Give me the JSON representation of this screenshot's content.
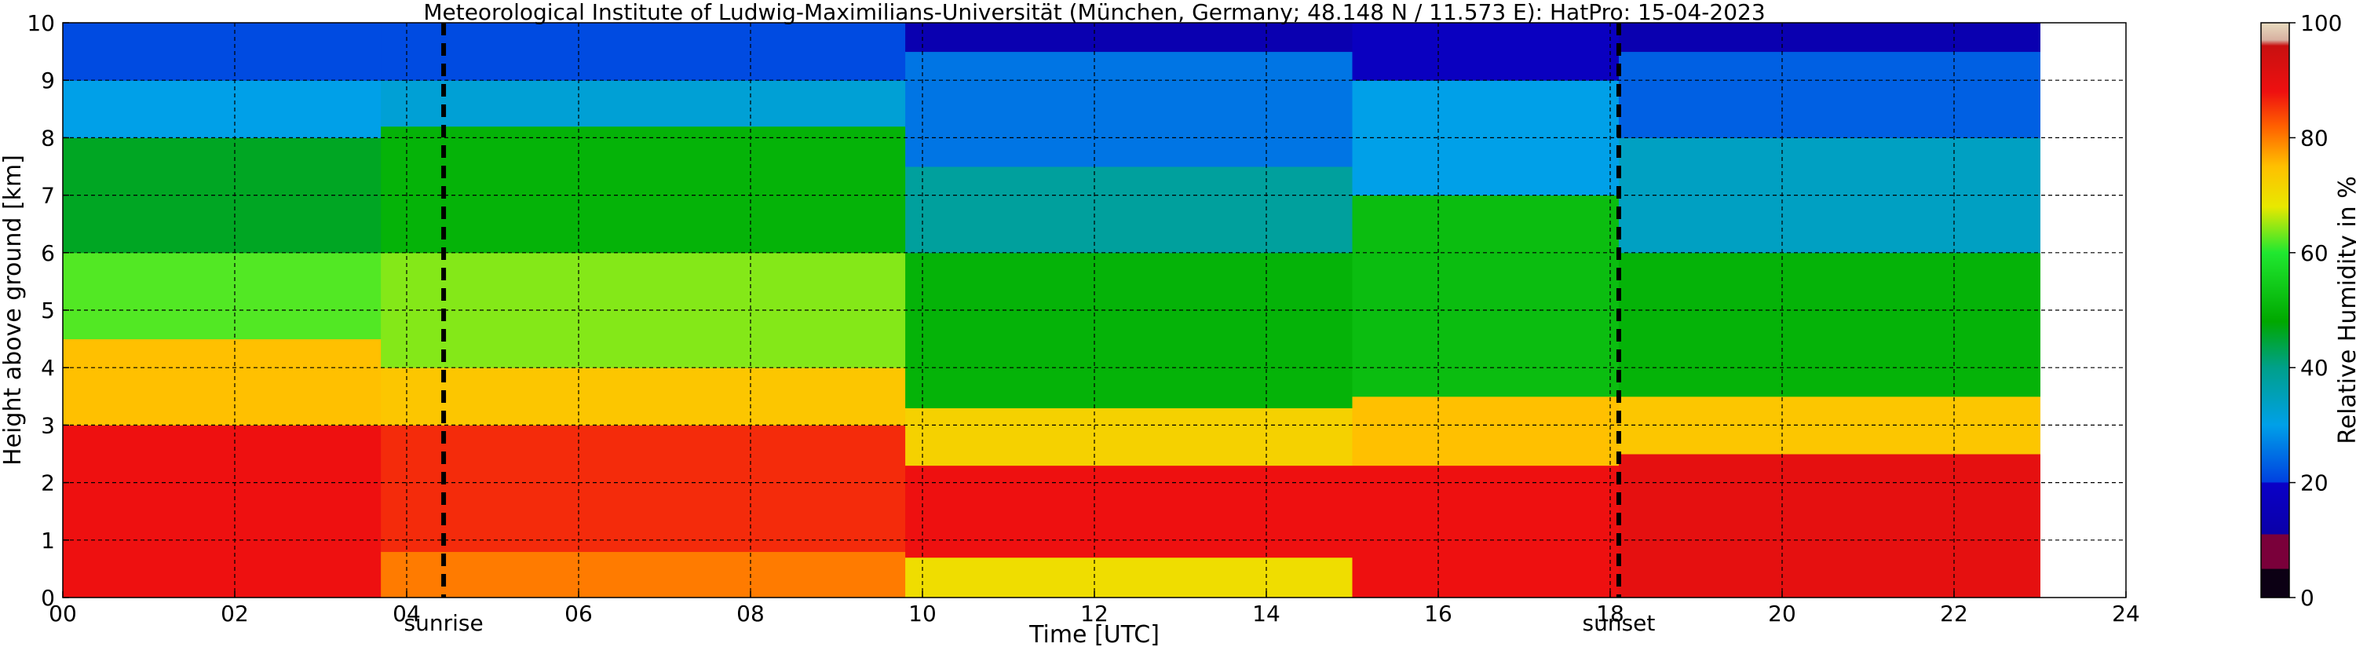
{
  "chart_data": {
    "type": "heatmap",
    "title": "Meteorological Institute of Ludwig-Maximilians-Universität (München, Germany; 48.148 N / 11.573 E):    HatPro: 15-04-2023",
    "xlabel": "Time [UTC]",
    "ylabel": "Height above ground [km]",
    "xlim": [
      0,
      24
    ],
    "ylim": [
      0,
      10
    ],
    "x_tick_labels": [
      "00",
      "02",
      "04",
      "06",
      "08",
      "10",
      "12",
      "14",
      "16",
      "18",
      "20",
      "22",
      "24"
    ],
    "y_tick_labels": [
      "0",
      "1",
      "2",
      "3",
      "4",
      "5",
      "6",
      "7",
      "8",
      "9",
      "10"
    ],
    "grid": true,
    "data_end_time": 23.0,
    "annotations": [
      {
        "label": "sunrise",
        "time": 4.43
      },
      {
        "label": "sunset",
        "time": 18.1
      }
    ],
    "colorbar": {
      "label": "Relative Humidity in %",
      "range": [
        0,
        100
      ],
      "tick_labels": [
        "0",
        "20",
        "40",
        "60",
        "80",
        "100"
      ]
    },
    "layers_note": "values are relative humidity (%) by height band [km] over time [UTC]",
    "rh_profile_by_period": [
      {
        "t": [
          0.0,
          3.7
        ],
        "bands": [
          [
            0,
            3,
            88
          ],
          [
            3,
            4.5,
            75
          ],
          [
            4.5,
            6,
            62
          ],
          [
            6,
            8,
            46
          ],
          [
            8,
            9,
            30
          ],
          [
            9,
            10,
            22
          ]
        ]
      },
      {
        "t": [
          3.7,
          9.8
        ],
        "bands": [
          [
            0,
            0.8,
            80
          ],
          [
            0.8,
            3,
            86
          ],
          [
            3,
            4,
            74
          ],
          [
            4,
            6,
            64
          ],
          [
            6,
            8.2,
            50
          ],
          [
            8.2,
            9,
            32
          ],
          [
            9,
            10,
            22
          ]
        ]
      },
      {
        "t": [
          9.8,
          15.0
        ],
        "bands": [
          [
            0,
            0.7,
            70
          ],
          [
            0.7,
            2.3,
            88
          ],
          [
            2.3,
            3.3,
            72
          ],
          [
            3.3,
            6,
            50
          ],
          [
            6,
            7.5,
            38
          ],
          [
            7.5,
            9.5,
            26
          ],
          [
            9.5,
            10,
            14
          ]
        ]
      },
      {
        "t": [
          15.0,
          18.1
        ],
        "bands": [
          [
            0,
            2.3,
            88
          ],
          [
            2.3,
            3.5,
            75
          ],
          [
            3.5,
            7,
            52
          ],
          [
            7,
            9,
            30
          ],
          [
            9,
            10,
            18
          ]
        ]
      },
      {
        "t": [
          18.1,
          23.0
        ],
        "bands": [
          [
            0,
            2.5,
            90
          ],
          [
            2.5,
            3.5,
            74
          ],
          [
            3.5,
            6,
            50
          ],
          [
            6,
            8,
            34
          ],
          [
            8,
            9.5,
            24
          ],
          [
            9.5,
            10,
            14
          ]
        ]
      }
    ]
  }
}
